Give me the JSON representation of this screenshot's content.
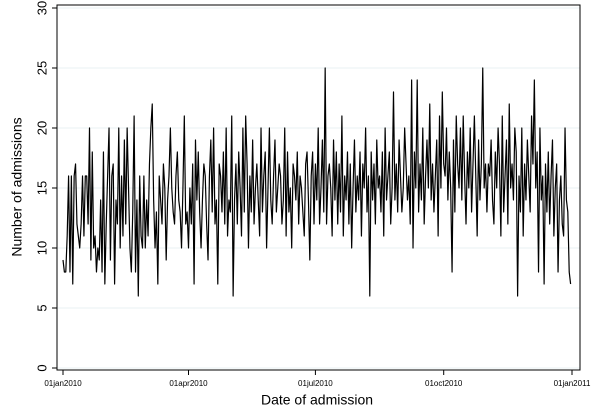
{
  "chart_data": {
    "type": "line",
    "x_label": "Date of admission",
    "y_label": "Number of admissions",
    "color": "#000000",
    "grid": true,
    "ylim": [
      0,
      30
    ],
    "yticks": [
      0,
      5,
      10,
      15,
      20,
      25,
      30
    ],
    "xlim": [
      "01jan2010",
      "01jan2011"
    ],
    "xticks": [
      "01jan2010",
      "01apr2010",
      "01jul2010",
      "01oct2010",
      "01jan2011"
    ],
    "x": [
      "01jan2010",
      "02jan2010",
      "03jan2010",
      "04jan2010",
      "05jan2010",
      "06jan2010",
      "07jan2010",
      "08jan2010",
      "09jan2010",
      "10jan2010",
      "11jan2010",
      "12jan2010",
      "13jan2010",
      "14jan2010",
      "15jan2010",
      "16jan2010",
      "17jan2010",
      "18jan2010",
      "19jan2010",
      "20jan2010",
      "21jan2010",
      "22jan2010",
      "23jan2010",
      "24jan2010",
      "25jan2010",
      "26jan2010",
      "27jan2010",
      "28jan2010",
      "29jan2010",
      "30jan2010",
      "31jan2010",
      "01feb2010",
      "02feb2010",
      "03feb2010",
      "04feb2010",
      "05feb2010",
      "06feb2010",
      "07feb2010",
      "08feb2010",
      "09feb2010",
      "10feb2010",
      "11feb2010",
      "12feb2010",
      "13feb2010",
      "14feb2010",
      "15feb2010",
      "16feb2010",
      "17feb2010",
      "18feb2010",
      "19feb2010",
      "20feb2010",
      "21feb2010",
      "22feb2010",
      "23feb2010",
      "24feb2010",
      "25feb2010",
      "26feb2010",
      "27feb2010",
      "28feb2010",
      "01mar2010",
      "02mar2010",
      "03mar2010",
      "04mar2010",
      "05mar2010",
      "06mar2010",
      "07mar2010",
      "08mar2010",
      "09mar2010",
      "10mar2010",
      "11mar2010",
      "12mar2010",
      "13mar2010",
      "14mar2010",
      "15mar2010",
      "16mar2010",
      "17mar2010",
      "18mar2010",
      "19mar2010",
      "20mar2010",
      "21mar2010",
      "22mar2010",
      "23mar2010",
      "24mar2010",
      "25mar2010",
      "26mar2010",
      "27mar2010",
      "28mar2010",
      "29mar2010",
      "30mar2010",
      "31mar2010",
      "01apr2010",
      "02apr2010",
      "03apr2010",
      "04apr2010",
      "05apr2010",
      "06apr2010",
      "07apr2010",
      "08apr2010",
      "09apr2010",
      "10apr2010",
      "11apr2010",
      "12apr2010",
      "13apr2010",
      "14apr2010",
      "15apr2010",
      "16apr2010",
      "17apr2010",
      "18apr2010",
      "19apr2010",
      "20apr2010",
      "21apr2010",
      "22apr2010",
      "23apr2010",
      "24apr2010",
      "25apr2010",
      "26apr2010",
      "27apr2010",
      "28apr2010",
      "29apr2010",
      "30apr2010",
      "01may2010",
      "02may2010",
      "03may2010",
      "04may2010",
      "05may2010",
      "06may2010",
      "07may2010",
      "08may2010",
      "09may2010",
      "10may2010",
      "11may2010",
      "12may2010",
      "13may2010",
      "14may2010",
      "15may2010",
      "16may2010",
      "17may2010",
      "18may2010",
      "19may2010",
      "20may2010",
      "21may2010",
      "22may2010",
      "23may2010",
      "24may2010",
      "25may2010",
      "26may2010",
      "27may2010",
      "28may2010",
      "29may2010",
      "30may2010",
      "31may2010",
      "01jun2010",
      "02jun2010",
      "03jun2010",
      "04jun2010",
      "05jun2010",
      "06jun2010",
      "07jun2010",
      "08jun2010",
      "09jun2010",
      "10jun2010",
      "11jun2010",
      "12jun2010",
      "13jun2010",
      "14jun2010",
      "15jun2010",
      "16jun2010",
      "17jun2010",
      "18jun2010",
      "19jun2010",
      "20jun2010",
      "21jun2010",
      "22jun2010",
      "23jun2010",
      "24jun2010",
      "25jun2010",
      "26jun2010",
      "27jun2010",
      "28jun2010",
      "29jun2010",
      "30jun2010",
      "01jul2010",
      "02jul2010",
      "03jul2010",
      "04jul2010",
      "05jul2010",
      "06jul2010",
      "07jul2010",
      "08jul2010",
      "09jul2010",
      "10jul2010",
      "11jul2010",
      "12jul2010",
      "13jul2010",
      "14jul2010",
      "15jul2010",
      "16jul2010",
      "17jul2010",
      "18jul2010",
      "19jul2010",
      "20jul2010",
      "21jul2010",
      "22jul2010",
      "23jul2010",
      "24jul2010",
      "25jul2010",
      "26jul2010",
      "27jul2010",
      "28jul2010",
      "29jul2010",
      "30jul2010",
      "31jul2010",
      "01aug2010",
      "02aug2010",
      "03aug2010",
      "04aug2010",
      "05aug2010",
      "06aug2010",
      "07aug2010",
      "08aug2010",
      "09aug2010",
      "10aug2010",
      "11aug2010",
      "12aug2010",
      "13aug2010",
      "14aug2010",
      "15aug2010",
      "16aug2010",
      "17aug2010",
      "18aug2010",
      "19aug2010",
      "20aug2010",
      "21aug2010",
      "22aug2010",
      "23aug2010",
      "24aug2010",
      "25aug2010",
      "26aug2010",
      "27aug2010",
      "28aug2010",
      "29aug2010",
      "30aug2010",
      "31aug2010",
      "01sep2010",
      "02sep2010",
      "03sep2010",
      "04sep2010",
      "05sep2010",
      "06sep2010",
      "07sep2010",
      "08sep2010",
      "09sep2010",
      "10sep2010",
      "11sep2010",
      "12sep2010",
      "13sep2010",
      "14sep2010",
      "15sep2010",
      "16sep2010",
      "17sep2010",
      "18sep2010",
      "19sep2010",
      "20sep2010",
      "21sep2010",
      "22sep2010",
      "23sep2010",
      "24sep2010",
      "25sep2010",
      "26sep2010",
      "27sep2010",
      "28sep2010",
      "29sep2010",
      "30sep2010",
      "01oct2010",
      "02oct2010",
      "03oct2010",
      "04oct2010",
      "05oct2010",
      "06oct2010",
      "07oct2010",
      "08oct2010",
      "09oct2010",
      "10oct2010",
      "11oct2010",
      "12oct2010",
      "13oct2010",
      "14oct2010",
      "15oct2010",
      "16oct2010",
      "17oct2010",
      "18oct2010",
      "19oct2010",
      "20oct2010",
      "21oct2010",
      "22oct2010",
      "23oct2010",
      "24oct2010",
      "25oct2010",
      "26oct2010",
      "27oct2010",
      "28oct2010",
      "29oct2010",
      "30oct2010",
      "31oct2010",
      "01nov2010",
      "02nov2010",
      "03nov2010",
      "04nov2010",
      "05nov2010",
      "06nov2010",
      "07nov2010",
      "08nov2010",
      "09nov2010",
      "10nov2010",
      "11nov2010",
      "12nov2010",
      "13nov2010",
      "14nov2010",
      "15nov2010",
      "16nov2010",
      "17nov2010",
      "18nov2010",
      "19nov2010",
      "20nov2010",
      "21nov2010",
      "22nov2010",
      "23nov2010",
      "24nov2010",
      "25nov2010",
      "26nov2010",
      "27nov2010",
      "28nov2010",
      "29nov2010",
      "30nov2010",
      "01dec2010",
      "02dec2010",
      "03dec2010",
      "04dec2010",
      "05dec2010",
      "06dec2010",
      "07dec2010",
      "08dec2010",
      "09dec2010",
      "10dec2010",
      "11dec2010",
      "12dec2010",
      "13dec2010",
      "14dec2010",
      "15dec2010",
      "16dec2010",
      "17dec2010",
      "18dec2010",
      "19dec2010",
      "20dec2010",
      "21dec2010",
      "22dec2010",
      "23dec2010",
      "24dec2010",
      "25dec2010",
      "26dec2010",
      "27dec2010",
      "28dec2010",
      "29dec2010",
      "30dec2010",
      "31dec2010"
    ],
    "values": [
      9,
      8,
      8,
      11,
      16,
      8,
      16,
      7,
      16,
      17,
      12,
      11,
      10,
      12,
      16,
      11,
      16,
      16,
      12,
      20,
      9,
      18,
      10,
      11,
      8,
      10,
      9,
      14,
      8,
      18,
      7,
      12,
      16,
      20,
      9,
      16,
      17,
      7,
      14,
      12,
      20,
      10,
      16,
      11,
      19,
      12,
      20,
      15,
      10,
      8,
      13,
      21,
      8,
      14,
      6,
      16,
      11,
      10,
      16,
      10,
      14,
      11,
      17,
      20,
      22,
      14,
      10,
      13,
      7,
      16,
      14,
      12,
      17,
      15,
      9,
      14,
      16,
      20,
      15,
      13,
      12,
      16,
      18,
      14,
      13,
      10,
      15,
      21,
      12,
      13,
      10,
      15,
      12,
      17,
      7,
      19,
      14,
      18,
      13,
      10,
      14,
      17,
      16,
      12,
      9,
      16,
      19,
      13,
      20,
      12,
      14,
      7,
      17,
      16,
      13,
      18,
      12,
      20,
      11,
      14,
      13,
      21,
      6,
      14,
      17,
      12,
      18,
      15,
      11,
      20,
      13,
      21,
      17,
      10,
      16,
      13,
      19,
      12,
      15,
      17,
      14,
      11,
      20,
      13,
      16,
      18,
      10,
      15,
      20,
      14,
      12,
      16,
      19,
      13,
      15,
      17,
      16,
      12,
      14,
      20,
      11,
      18,
      13,
      15,
      10,
      17,
      16,
      14,
      18,
      12,
      16,
      15,
      13,
      11,
      17,
      18,
      14,
      9,
      16,
      18,
      12,
      17,
      14,
      20,
      12,
      15,
      19,
      13,
      25,
      12,
      16,
      17,
      15,
      11,
      19,
      14,
      18,
      12,
      17,
      13,
      21,
      11,
      16,
      14,
      18,
      12,
      17,
      10,
      15,
      19,
      13,
      16,
      14,
      18,
      11,
      17,
      15,
      20,
      13,
      16,
      6,
      18,
      14,
      17,
      12,
      19,
      15,
      16,
      13,
      18,
      11,
      20,
      14,
      16,
      18,
      12,
      15,
      23,
      14,
      17,
      13,
      19,
      16,
      13,
      15,
      20,
      17,
      14,
      16,
      12,
      24,
      10,
      18,
      15,
      24,
      13,
      17,
      14,
      20,
      12,
      16,
      19,
      15,
      22,
      14,
      17,
      13,
      16,
      19,
      11,
      21,
      15,
      23,
      17,
      16,
      20,
      14,
      18,
      15,
      8,
      19,
      13,
      21,
      17,
      15,
      20,
      14,
      21,
      16,
      12,
      18,
      15,
      20,
      13,
      17,
      21,
      16,
      11,
      19,
      14,
      17,
      25,
      15,
      17,
      13,
      17,
      16,
      19,
      14,
      12,
      18,
      15,
      20,
      17,
      11,
      21,
      13,
      16,
      19,
      12,
      22,
      15,
      17,
      14,
      20,
      18,
      6,
      16,
      13,
      20,
      11,
      17,
      14,
      19,
      16,
      13,
      21,
      17,
      24,
      15,
      18,
      8,
      20,
      14,
      16,
      7,
      17,
      13,
      18,
      12,
      16,
      19,
      11,
      15,
      17,
      8,
      14,
      16,
      12,
      11,
      20,
      14,
      13,
      8,
      7
    ]
  }
}
